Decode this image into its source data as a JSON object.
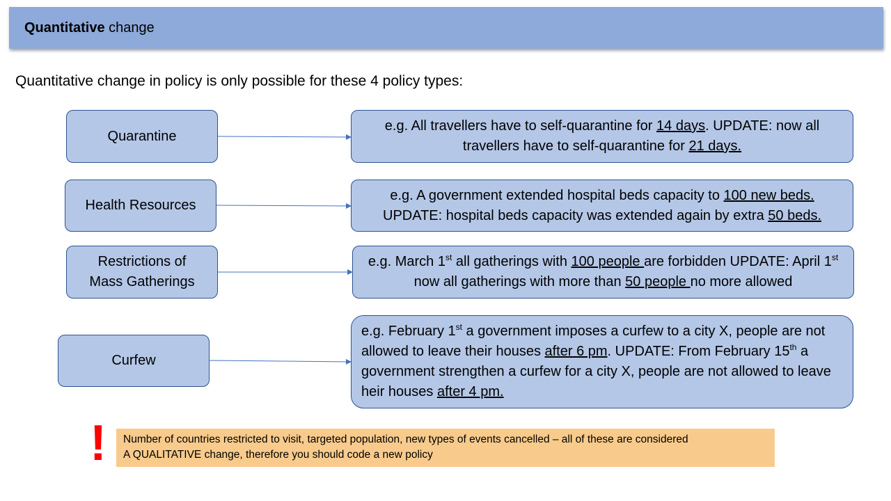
{
  "header": {
    "title_bold": "Quantitative",
    "title_rest": " change"
  },
  "intro": "Quantitative change in policy is only possible for these 4 policy types:",
  "policies": [
    {
      "label_lines": [
        "Quarantine"
      ],
      "example": [
        {
          "t": "e.g. All travellers have to self-quarantine for "
        },
        {
          "t": "14 days",
          "u": true
        },
        {
          "t": ". UPDATE: now all travellers have to self-quarantine for "
        },
        {
          "t": "21 days.",
          "u": true
        }
      ]
    },
    {
      "label_lines": [
        "Health Resources"
      ],
      "example": [
        {
          "t": "e.g. A government extended hospital beds capacity to "
        },
        {
          "t": "100 new beds.",
          "u": true
        },
        {
          "t": " UPDATE: hospital beds capacity was extended again by extra "
        },
        {
          "t": "50 beds.",
          "u": true
        }
      ]
    },
    {
      "label_lines": [
        "Restrictions of",
        "Mass Gatherings"
      ],
      "example": [
        {
          "t": "e.g. March 1"
        },
        {
          "t": "st",
          "sup": true
        },
        {
          "t": " all gatherings with "
        },
        {
          "t": "100 people ",
          "u": true
        },
        {
          "t": "are forbidden UPDATE: April 1"
        },
        {
          "t": "st",
          "sup": true
        },
        {
          "t": " now all gatherings with more than "
        },
        {
          "t": "50 people ",
          "u": true
        },
        {
          "t": "no more allowed"
        }
      ]
    },
    {
      "label_lines": [
        "Curfew"
      ],
      "example": [
        {
          "t": "e.g. February 1"
        },
        {
          "t": "st",
          "sup": true
        },
        {
          "t": " a government imposes a curfew to a city X, people are not allowed to leave their houses "
        },
        {
          "t": "after 6 pm",
          "u": true
        },
        {
          "t": ". UPDATE: From February 15"
        },
        {
          "t": "th",
          "sup": true
        },
        {
          "t": " a government strengthen a curfew for a city X, people are not allowed to leave heir houses "
        },
        {
          "t": "after 4 pm.",
          "u": true
        }
      ]
    }
  ],
  "warning_mark": "!",
  "note": {
    "line1": "Number of countries restricted to visit, targeted population, new types of events cancelled – all of these are considered",
    "line2": "A QUALITATIVE change, therefore you should code a new policy"
  },
  "colors": {
    "header_bg": "#8eaadb",
    "box_fill": "#b4c7e7",
    "box_border": "#2f528f",
    "arrow": "#4472c4",
    "note_bg": "#f8cb8c",
    "warning": "#ff0000"
  }
}
